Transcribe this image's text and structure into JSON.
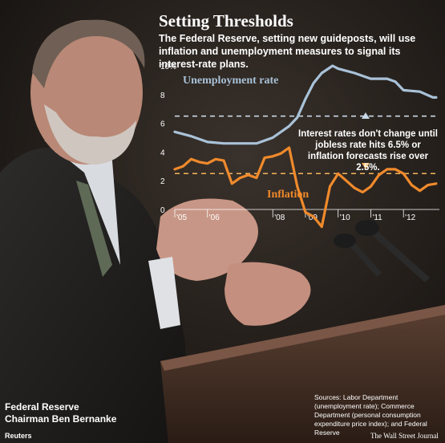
{
  "header": {
    "title": "Setting Thresholds",
    "subtitle": "The Federal Reserve, setting new guideposts, will use inflation and unemployment measures to signal its interest-rate plans."
  },
  "annotation": "Interest rates don't change until jobless rate hits 6.5% or inflation forecasts rise over 2.5%.",
  "photo": {
    "caption_line1": "Federal Reserve",
    "caption_line2": "Chairman Ben Bernanke",
    "credit": "Reuters"
  },
  "footer": {
    "sources": "Sources: Labor Department (unemployment rate); Commerce Department (personal consumption expenditure price index); and Federal Reserve",
    "publisher": "The Wall Street Journal"
  },
  "colors": {
    "unemployment": "#a9c2d8",
    "inflation": "#f08a2c",
    "threshold_unemployment": "#c9d8e6",
    "threshold_inflation": "#f5b45a"
  },
  "chart_data": {
    "type": "line",
    "title": "Setting Thresholds",
    "x_ticks": [
      "'05",
      "'06",
      "'08",
      "'09",
      "'10",
      "'11",
      "'12"
    ],
    "y_ticks": [
      "10%",
      "8",
      "6",
      "4",
      "2",
      "0"
    ],
    "ylim": [
      0,
      10
    ],
    "xlim": [
      2005.0,
      2013.1
    ],
    "grid": false,
    "thresholds": [
      {
        "value": 6.5,
        "applies_to": "Unemployment rate"
      },
      {
        "value": 2.5,
        "applies_to": "Inflation"
      }
    ],
    "series": [
      {
        "name": "Unemployment rate",
        "x": [
          2005.0,
          2005.5,
          2006.0,
          2006.5,
          2007.0,
          2007.5,
          2008.0,
          2008.5,
          2008.75,
          2009.0,
          2009.25,
          2009.5,
          2009.83,
          2010.0,
          2010.5,
          2011.0,
          2011.5,
          2011.75,
          2012.0,
          2012.5,
          2012.9,
          2013.0
        ],
        "values": [
          5.4,
          5.1,
          4.7,
          4.6,
          4.6,
          4.6,
          5.0,
          5.8,
          6.4,
          7.7,
          8.8,
          9.5,
          10.0,
          9.8,
          9.5,
          9.1,
          9.1,
          8.9,
          8.3,
          8.2,
          7.8,
          7.8
        ]
      },
      {
        "name": "Inflation",
        "x": [
          2005.0,
          2005.25,
          2005.5,
          2005.75,
          2006.0,
          2006.25,
          2006.5,
          2006.75,
          2007.0,
          2007.25,
          2007.5,
          2007.75,
          2008.0,
          2008.25,
          2008.5,
          2008.75,
          2009.0,
          2009.25,
          2009.5,
          2009.75,
          2010.0,
          2010.25,
          2010.5,
          2010.75,
          2011.0,
          2011.25,
          2011.5,
          2011.75,
          2012.0,
          2012.25,
          2012.5,
          2012.75,
          2013.0
        ],
        "values": [
          2.8,
          3.0,
          3.5,
          3.3,
          3.2,
          3.5,
          3.4,
          1.8,
          2.2,
          2.4,
          2.2,
          3.6,
          3.7,
          3.9,
          4.3,
          1.6,
          -0.2,
          -0.5,
          -1.2,
          1.6,
          2.5,
          2.0,
          1.5,
          1.2,
          1.6,
          2.4,
          2.8,
          2.8,
          2.5,
          1.7,
          1.3,
          1.7,
          1.8
        ]
      }
    ]
  }
}
